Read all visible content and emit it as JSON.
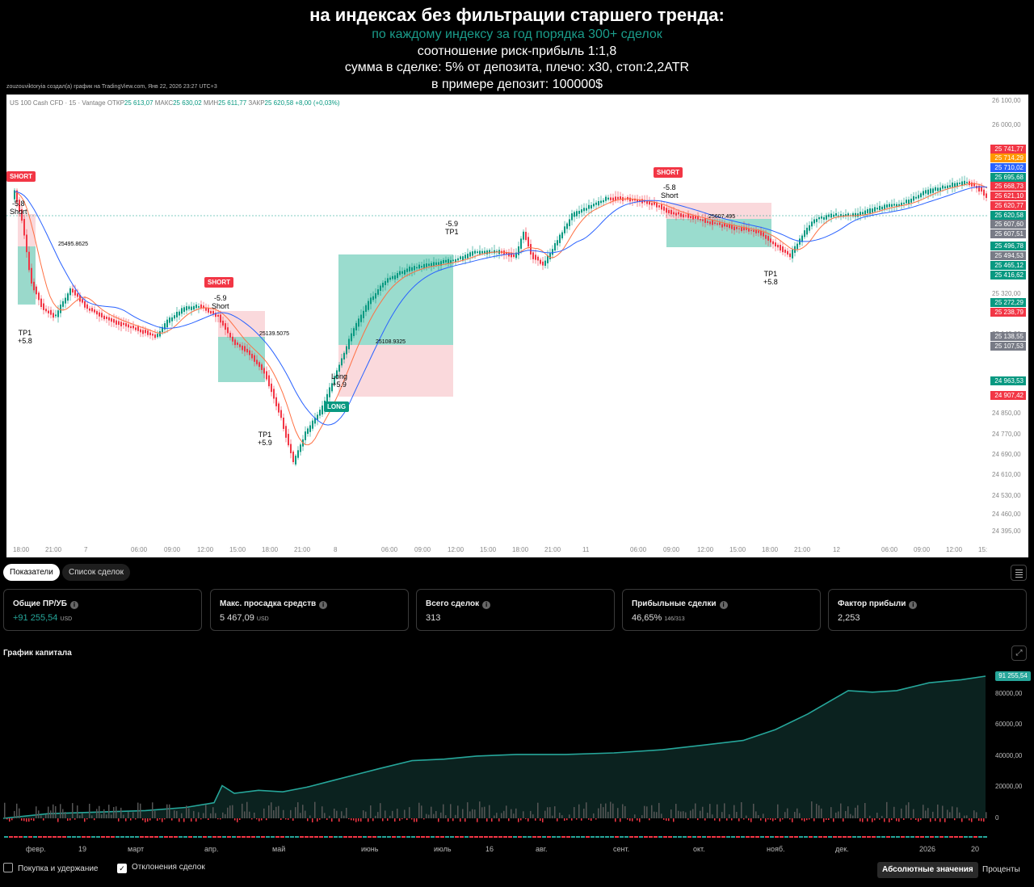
{
  "header": {
    "title": "на индексах без фильтрации старшего тренда:",
    "line2": "по каждому индексу за год порядка 300+ сделок",
    "line3": "соотношение риск-прибыль 1:1,8",
    "line4": "сумма в сделке: 5% от депозита, плечо: х30, стоп:2,2ATR",
    "line5": "в примере депозит: 100000$",
    "credit": "zouzouviktoryia создал(а) график на TradingView.com, Янв 22, 2026 23:27 UTC+3"
  },
  "chart_legend": {
    "symbol": "US 100 Cash CFD · 15 · Vantage",
    "open_label": "ОТКР",
    "open": "25 613,07",
    "high_label": "МАКС",
    "high": "25 630,02",
    "low_label": "МИН",
    "low": "25 611,77",
    "close_label": "ЗАКР",
    "close": "25 620,58",
    "change": "+8,00 (+0,03%)"
  },
  "signals": {
    "short1": "SHORT",
    "short1_note_a": "-5.8",
    "short1_note_b": "Short",
    "tp1_a": "TP1",
    "tp1_a_val": "+5.8",
    "short2": "SHORT",
    "short2_note_a": "-5.9",
    "short2_note_b": "Short",
    "tp1_b": "TP1",
    "tp1_b_val": "+5.9",
    "long": "LONG",
    "long_note_a": "Long",
    "long_note_b": "+5.9",
    "tp1_c": "TP1",
    "tp1_c_val": "-5.9",
    "short3": "SHORT",
    "short3_note_a": "-5.8",
    "short3_note_b": "Short",
    "tp1_d": "TP1",
    "tp1_d_val": "+5.8",
    "level_a": "25495.8625",
    "level_b": "25139.5075",
    "level_c": "25108.9325",
    "level_d": "25607.495"
  },
  "price_axis": [
    "26 100,00",
    "26 000,00",
    "25 320,00",
    "25 140,00",
    "24 850,00",
    "24 770,00",
    "24 690,00",
    "24 610,00",
    "24 530,00",
    "24 460,00",
    "24 395,00"
  ],
  "price_tags": [
    {
      "v": "25 741,77",
      "c": "#f23645"
    },
    {
      "v": "25 714,29",
      "c": "#ff9800"
    },
    {
      "v": "25 710,02",
      "c": "#2962ff"
    },
    {
      "v": "25 695,68",
      "c": "#089981"
    },
    {
      "v": "25 668,73",
      "c": "#f23645"
    },
    {
      "v": "25 621,10",
      "c": "#f23645"
    },
    {
      "v": "25 620,77",
      "c": "#f23645"
    },
    {
      "v": "25 620,58",
      "c": "#089981"
    },
    {
      "v": "25 607,60",
      "c": "#787b86"
    },
    {
      "v": "25 607,51",
      "c": "#787b86"
    },
    {
      "v": "25 496,78",
      "c": "#089981"
    },
    {
      "v": "25 494,53",
      "c": "#787b86"
    },
    {
      "v": "25 465,12",
      "c": "#089981"
    },
    {
      "v": "25 416,62",
      "c": "#089981"
    },
    {
      "v": "25 272,29",
      "c": "#089981"
    },
    {
      "v": "25 238,79",
      "c": "#f23645"
    },
    {
      "v": "25 138,55",
      "c": "#787b86"
    },
    {
      "v": "25 107,53",
      "c": "#787b86"
    },
    {
      "v": "24 963,53",
      "c": "#089981"
    },
    {
      "v": "24 907,42",
      "c": "#f23645"
    }
  ],
  "time_axis": [
    "18:00",
    "21:00",
    "7",
    "06:00",
    "09:00",
    "12:00",
    "15:00",
    "18:00",
    "21:00",
    "8",
    "06:00",
    "09:00",
    "12:00",
    "15:00",
    "18:00",
    "21:00",
    "11",
    "06:00",
    "09:00",
    "12:00",
    "15:00",
    "18:00",
    "21:00",
    "12",
    "06:00",
    "09:00",
    "12:00",
    "15:"
  ],
  "tabs": {
    "metrics": "Показатели",
    "trades": "Список сделок"
  },
  "cards": {
    "net_pnl": {
      "label": "Общие ПР/УБ",
      "value": "+91 255,54",
      "unit": "USD"
    },
    "drawdown": {
      "label": "Макс. просадка средств",
      "value": "5 467,09",
      "unit": "USD"
    },
    "total": {
      "label": "Всего сделок",
      "value": "313"
    },
    "profitable": {
      "label": "Прибыльные сделки",
      "value": "46,65%",
      "sub": "146/313"
    },
    "factor": {
      "label": "Фактор прибыли",
      "value": "2,253"
    }
  },
  "equity": {
    "title": "График капитала",
    "current": "91 255,54",
    "y_labels": [
      "80000,00",
      "60000,00",
      "40000,00",
      "20000,00",
      "0"
    ],
    "x_labels": [
      "февр.",
      "19",
      "март",
      "апр.",
      "май",
      "июнь",
      "июль",
      "16",
      "авг.",
      "сент.",
      "окт.",
      "нояб.",
      "дек.",
      "2026",
      "20"
    ]
  },
  "footer": {
    "buy_hold": "Покупка и удержание",
    "deviations": "Отклонения сделок",
    "absolute": "Абсолютные значения",
    "percent": "Проценты"
  },
  "colors": {
    "up": "#089981",
    "down": "#f23645",
    "equity": "#26a69a"
  }
}
